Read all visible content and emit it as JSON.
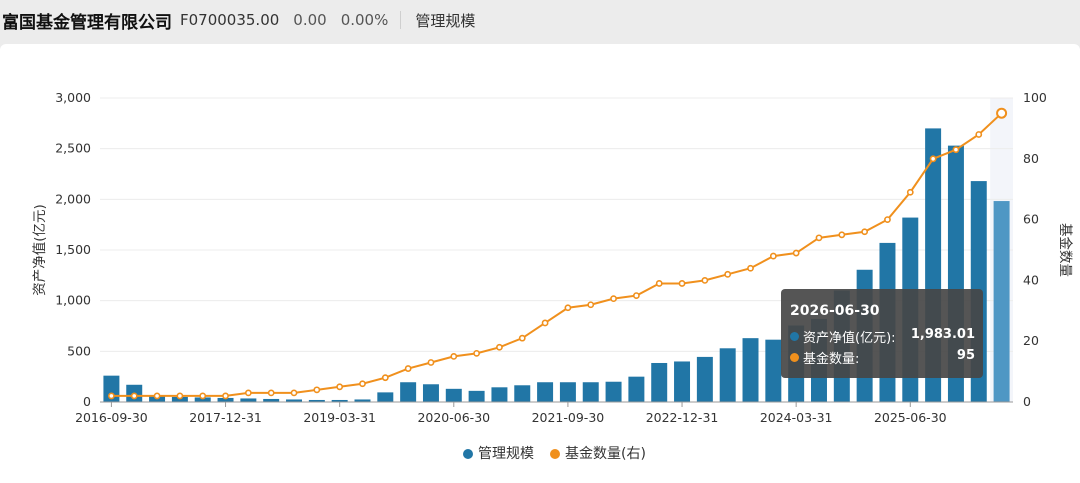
{
  "header": {
    "company": "富国基金管理有限公司",
    "code": "F0700035.00",
    "change": "0.00",
    "change_pct": "0.00%",
    "tab": "管理规模"
  },
  "tooltip": {
    "date": "2026-06-30",
    "row1_label": "资产净值(亿元):",
    "row1_value": "1,983.01",
    "row2_label": "基金数量:",
    "row2_value": "95"
  },
  "colors": {
    "bar": "#2176a6",
    "bar_highlight": "#4f97c4",
    "line": "#f0901d"
  },
  "chart_data": {
    "type": "bar",
    "ylabel": "资产净值(亿元)",
    "y2label": "基金数量",
    "ylim": [
      0,
      3000
    ],
    "y2lim": [
      0,
      100
    ],
    "yticks": [
      "0",
      "500",
      "1,000",
      "1,500",
      "2,000",
      "2,500",
      "3,000"
    ],
    "y2ticks": [
      "0",
      "20",
      "40",
      "60",
      "80",
      "100"
    ],
    "x_tick_labels": [
      {
        "index": 0,
        "label": "2016-09-30"
      },
      {
        "index": 5,
        "label": "2017-12-31"
      },
      {
        "index": 10,
        "label": "2019-03-31"
      },
      {
        "index": 15,
        "label": "2020-06-30"
      },
      {
        "index": 20,
        "label": "2021-09-30"
      },
      {
        "index": 25,
        "label": "2022-12-31"
      },
      {
        "index": 30,
        "label": "2024-03-31"
      },
      {
        "index": 35,
        "label": "2025-06-30"
      }
    ],
    "categories": [
      "2016-09-30",
      "2016-12-31",
      "2017-03-31",
      "2017-06-30",
      "2017-09-30",
      "2017-12-31",
      "2018-03-31",
      "2018-06-30",
      "2018-09-30",
      "2018-12-31",
      "2019-03-31",
      "2019-06-30",
      "2019-09-30",
      "2019-12-31",
      "2020-03-31",
      "2020-06-30",
      "2020-09-30",
      "2020-12-31",
      "2021-03-31",
      "2021-06-30",
      "2021-09-30",
      "2021-12-31",
      "2022-03-31",
      "2022-06-30",
      "2022-09-30",
      "2022-12-31",
      "2023-03-31",
      "2023-06-30",
      "2023-09-30",
      "2023-12-31",
      "2024-03-31",
      "2024-06-30",
      "2024-09-30",
      "2024-12-31",
      "2025-03-31",
      "2025-06-30",
      "2025-09-30",
      "2025-12-31",
      "2026-03-31",
      "2026-06-30"
    ],
    "series": [
      {
        "name": "管理规模",
        "axis": "left",
        "type": "bar",
        "values": [
          260,
          170,
          60,
          50,
          45,
          40,
          35,
          30,
          25,
          20,
          20,
          25,
          95,
          195,
          175,
          130,
          110,
          145,
          165,
          195,
          195,
          195,
          200,
          250,
          385,
          400,
          445,
          530,
          630,
          615,
          755,
          820,
          1100,
          1305,
          1570,
          1820,
          2700,
          2530,
          2180,
          1983.01
        ]
      },
      {
        "name": "基金数量(右)",
        "axis": "right",
        "type": "line",
        "values": [
          2,
          2,
          2,
          2,
          2,
          2,
          3,
          3,
          3,
          4,
          5,
          6,
          8,
          11,
          13,
          15,
          16,
          18,
          21,
          26,
          31,
          32,
          34,
          35,
          39,
          39,
          40,
          42,
          44,
          48,
          49,
          54,
          55,
          56,
          60,
          69,
          80,
          83,
          88,
          95
        ]
      }
    ]
  }
}
